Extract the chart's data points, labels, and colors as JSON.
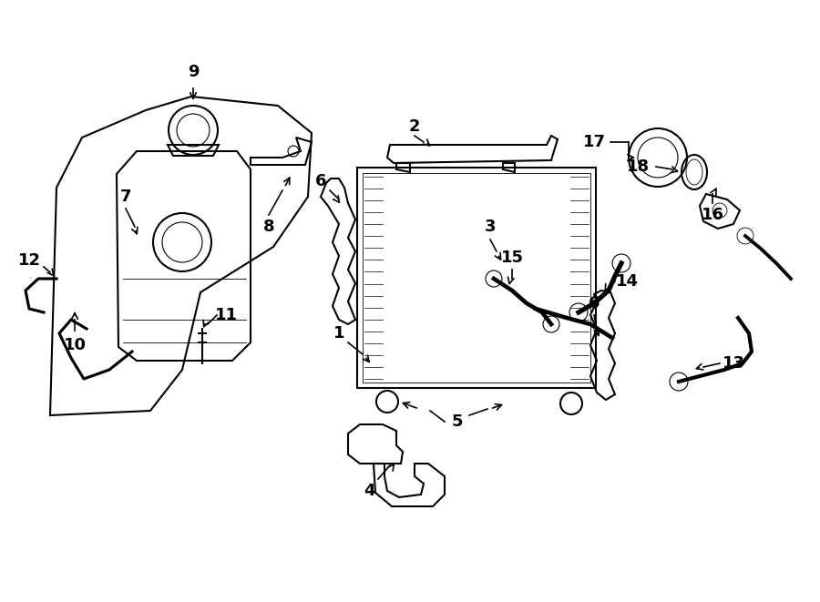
{
  "bg_color": "#ffffff",
  "line_color": "#000000",
  "line_width": 1.5,
  "thin_line": 0.8,
  "font_size": 13,
  "bold_font_size": 14,
  "fig_width": 9.0,
  "fig_height": 6.61,
  "dpi": 100
}
